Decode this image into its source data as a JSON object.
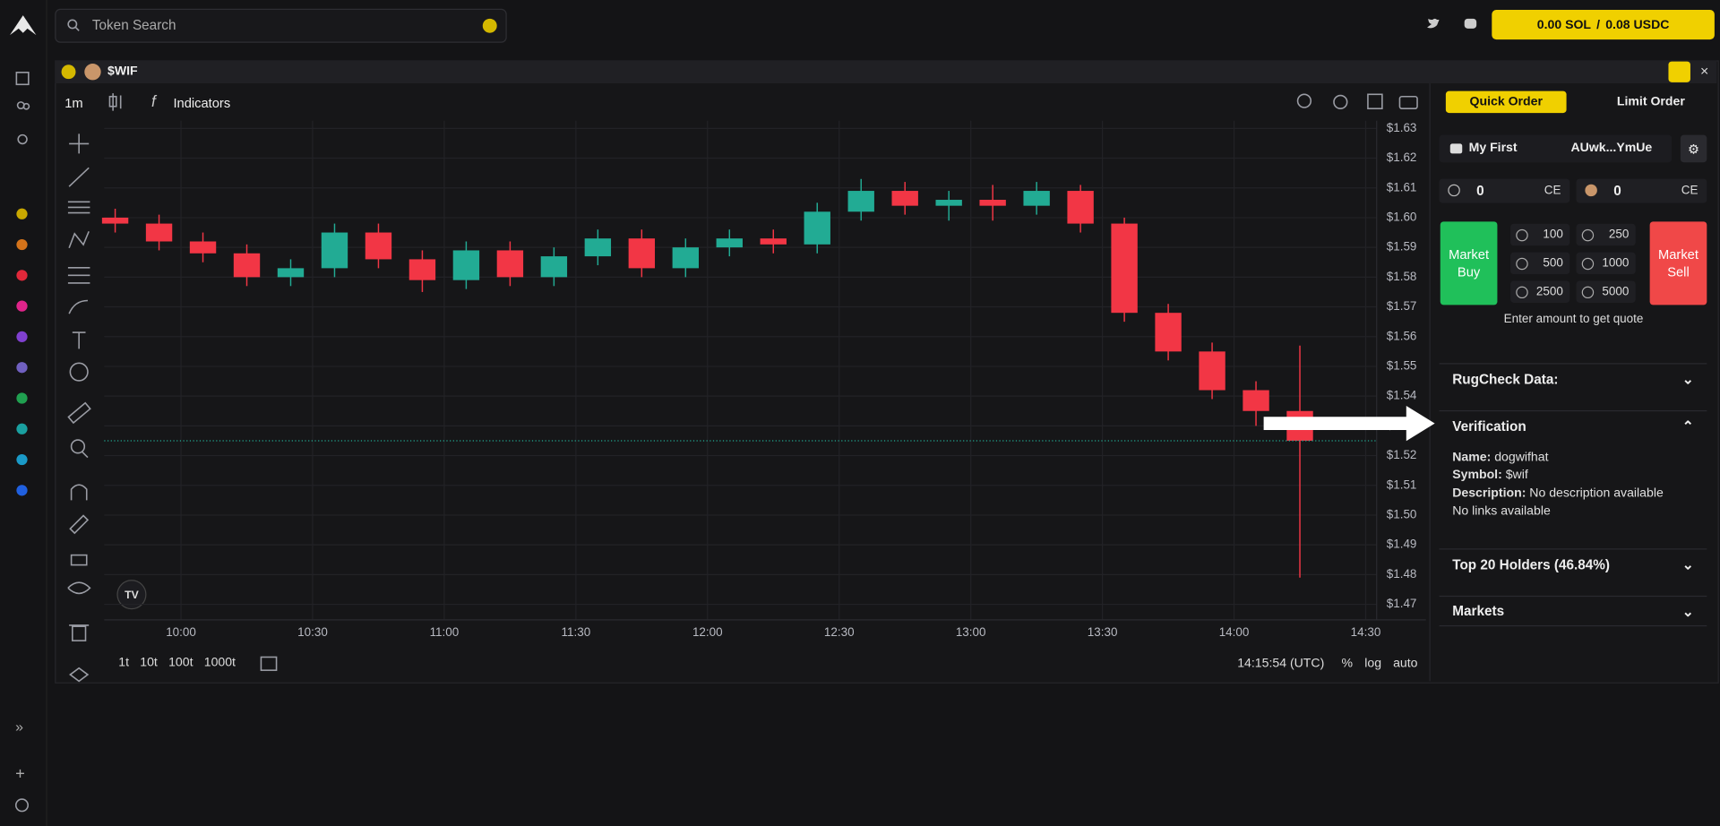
{
  "header": {
    "search_placeholder": "Token Search",
    "wallet": {
      "sol": "0.00 SOL",
      "separator": "/",
      "usdc": "0.08 USDC"
    }
  },
  "panel": {
    "token": "$WIF"
  },
  "toolbar": {
    "interval": "1m",
    "indicators": "Indicators"
  },
  "chart_data": {
    "type": "candlestick",
    "x": [
      585,
      595,
      605,
      615,
      625,
      635,
      645,
      655,
      665,
      675,
      685,
      695,
      705,
      715,
      725,
      735,
      745,
      755,
      765,
      775,
      785,
      795,
      805,
      815,
      825,
      835,
      845,
      855
    ],
    "open": [
      1.6,
      1.598,
      1.592,
      1.588,
      1.58,
      1.583,
      1.595,
      1.586,
      1.579,
      1.589,
      1.58,
      1.587,
      1.593,
      1.583,
      1.59,
      1.593,
      1.591,
      1.602,
      1.609,
      1.604,
      1.606,
      1.604,
      1.609,
      1.598,
      1.568,
      1.555,
      1.542,
      1.535
    ],
    "high": [
      1.603,
      1.601,
      1.595,
      1.591,
      1.586,
      1.598,
      1.598,
      1.589,
      1.592,
      1.592,
      1.59,
      1.596,
      1.596,
      1.593,
      1.596,
      1.596,
      1.605,
      1.613,
      1.612,
      1.609,
      1.611,
      1.612,
      1.611,
      1.6,
      1.571,
      1.558,
      1.545,
      1.557
    ],
    "low": [
      1.595,
      1.589,
      1.585,
      1.577,
      1.577,
      1.58,
      1.583,
      1.575,
      1.576,
      1.577,
      1.577,
      1.584,
      1.58,
      1.58,
      1.587,
      1.588,
      1.588,
      1.599,
      1.601,
      1.599,
      1.599,
      1.601,
      1.595,
      1.565,
      1.552,
      1.539,
      1.53,
      1.479
    ],
    "close": [
      1.598,
      1.592,
      1.588,
      1.58,
      1.583,
      1.595,
      1.586,
      1.579,
      1.589,
      1.58,
      1.587,
      1.593,
      1.583,
      1.59,
      1.593,
      1.591,
      1.602,
      1.609,
      1.604,
      1.606,
      1.604,
      1.609,
      1.598,
      1.568,
      1.555,
      1.542,
      1.535,
      1.525
    ],
    "xlim": [
      582.5,
      872.5
    ],
    "xticks": [
      {
        "value": 600,
        "label": "10:00"
      },
      {
        "value": 630,
        "label": "10:30"
      },
      {
        "value": 660,
        "label": "11:00"
      },
      {
        "value": 690,
        "label": "11:30"
      },
      {
        "value": 720,
        "label": "12:00"
      },
      {
        "value": 750,
        "label": "12:30"
      },
      {
        "value": 780,
        "label": "13:00"
      },
      {
        "value": 810,
        "label": "13:30"
      },
      {
        "value": 840,
        "label": "14:00"
      },
      {
        "value": 870,
        "label": "14:30"
      }
    ],
    "ylim": [
      1.4648,
      1.6326
    ],
    "yticks": [
      {
        "value": 1.47,
        "label": "$1.47"
      },
      {
        "value": 1.48,
        "label": "$1.48"
      },
      {
        "value": 1.49,
        "label": "$1.49"
      },
      {
        "value": 1.5,
        "label": "$1.50"
      },
      {
        "value": 1.51,
        "label": "$1.51"
      },
      {
        "value": 1.52,
        "label": "$1.52"
      },
      {
        "value": 1.53,
        "label": "$1.53"
      },
      {
        "value": 1.54,
        "label": "$1.54"
      },
      {
        "value": 1.55,
        "label": "$1.55"
      },
      {
        "value": 1.56,
        "label": "$1.56"
      },
      {
        "value": 1.57,
        "label": "$1.57"
      },
      {
        "value": 1.58,
        "label": "$1.58"
      },
      {
        "value": 1.59,
        "label": "$1.59"
      },
      {
        "value": 1.6,
        "label": "$1.60"
      },
      {
        "value": 1.61,
        "label": "$1.61"
      },
      {
        "value": 1.62,
        "label": "$1.62"
      },
      {
        "value": 1.63,
        "label": "$1.63"
      }
    ],
    "grid": true,
    "up_color": "#22ab94",
    "down_color": "#f23645"
  },
  "bottom_bar": {
    "ranges": [
      "1t",
      "10t",
      "100t",
      "1000t"
    ],
    "clock": "14:15:54 (UTC)",
    "percent": "%",
    "log": "log",
    "auto": "auto"
  },
  "order": {
    "tabs": [
      "Quick Order",
      "Limit Order"
    ],
    "wallet_name": "My First",
    "address": "AUwk...YmUe",
    "inputs": [
      {
        "value": "0",
        "unit": "CE"
      },
      {
        "value": "0",
        "unit": "CE"
      }
    ],
    "buy": "Market Buy",
    "sell": "Market Sell",
    "buy_amounts": [
      100,
      500,
      2500
    ],
    "sell_amounts": [
      250,
      1000,
      5000
    ],
    "hint": "Enter amount to get quote"
  },
  "sections": {
    "rugcheck": "RugCheck Data:",
    "verification": {
      "title": "Verification",
      "fields": [
        {
          "label": "Name:",
          "value": "dogwifhat"
        },
        {
          "label": "Symbol:",
          "value": "$wif"
        },
        {
          "label": "Description:",
          "value": "No description available"
        }
      ],
      "note": "No links available"
    },
    "holders": "Top 20 Holders (46.84%)",
    "markets": "Markets"
  }
}
